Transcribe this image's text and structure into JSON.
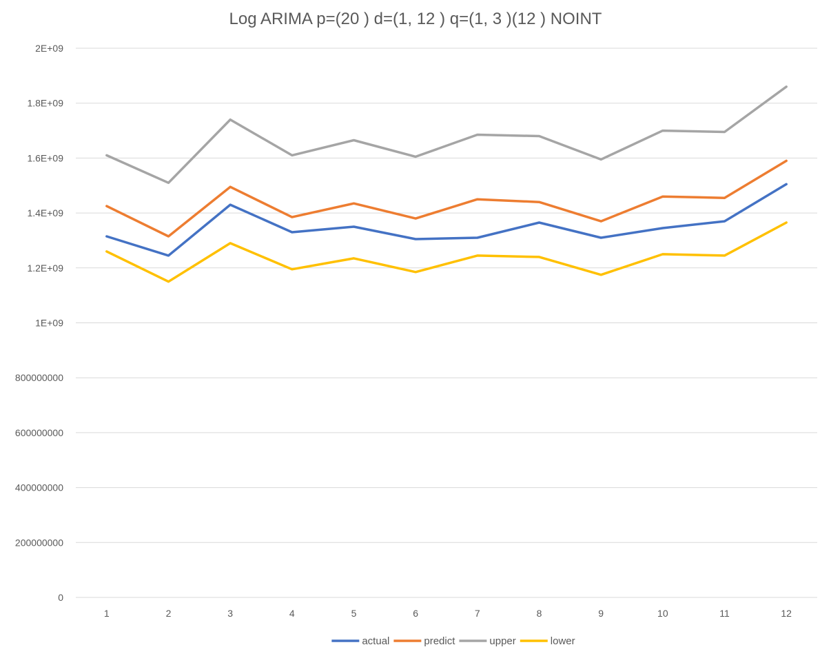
{
  "chart_data": {
    "type": "line",
    "title": "Log ARIMA p=(20 ) d=(1, 12 ) q=(1, 3 )(12 ) NOINT",
    "xlabel": "",
    "ylabel": "",
    "categories": [
      "1",
      "2",
      "3",
      "4",
      "5",
      "6",
      "7",
      "8",
      "9",
      "10",
      "11",
      "12"
    ],
    "ylim": [
      0,
      2000000000
    ],
    "y_ticks": [
      0,
      200000000,
      400000000,
      600000000,
      800000000,
      1000000000,
      1200000000,
      1400000000,
      1600000000,
      1800000000,
      2000000000
    ],
    "y_tick_labels": [
      "0",
      "200000000",
      "400000000",
      "600000000",
      "800000000",
      "1E+09",
      "1.2E+09",
      "1.4E+09",
      "1.6E+09",
      "1.8E+09",
      "2E+09"
    ],
    "grid": true,
    "legend_position": "bottom",
    "series": [
      {
        "name": "actual",
        "color": "#4472c4",
        "values": [
          1315000000,
          1245000000,
          1430000000,
          1330000000,
          1350000000,
          1305000000,
          1310000000,
          1365000000,
          1310000000,
          1345000000,
          1370000000,
          1505000000
        ]
      },
      {
        "name": "predict",
        "color": "#ed7d31",
        "values": [
          1425000000,
          1315000000,
          1495000000,
          1385000000,
          1435000000,
          1380000000,
          1450000000,
          1440000000,
          1370000000,
          1460000000,
          1455000000,
          1590000000
        ]
      },
      {
        "name": "upper",
        "color": "#a5a5a5",
        "values": [
          1610000000,
          1510000000,
          1740000000,
          1610000000,
          1665000000,
          1605000000,
          1685000000,
          1680000000,
          1595000000,
          1700000000,
          1695000000,
          1860000000
        ]
      },
      {
        "name": "lower",
        "color": "#ffc000",
        "values": [
          1260000000,
          1150000000,
          1290000000,
          1195000000,
          1235000000,
          1185000000,
          1245000000,
          1240000000,
          1175000000,
          1250000000,
          1245000000,
          1365000000
        ]
      }
    ]
  }
}
